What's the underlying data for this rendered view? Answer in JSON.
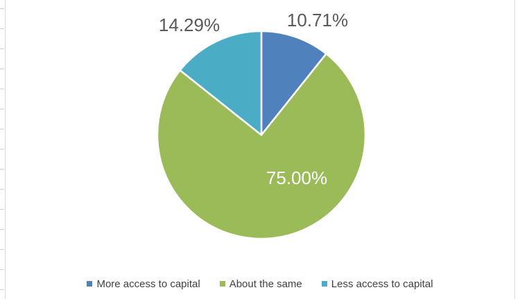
{
  "chart_data": {
    "type": "pie",
    "categories": [
      "More access to capital",
      "About the same",
      "Less access to capital"
    ],
    "values": [
      10.71,
      75.0,
      14.29
    ],
    "data_labels": [
      "10.71%",
      "75.00%",
      "14.29%"
    ],
    "colors": [
      "#4F81BD",
      "#9BBB59",
      "#4BACC6"
    ],
    "title": "",
    "legend_position": "bottom",
    "start_angle_deg": 0,
    "direction": "clockwise"
  },
  "legend": {
    "items": [
      {
        "label": "More access to capital",
        "color": "#4F81BD"
      },
      {
        "label": "About the same",
        "color": "#9BBB59"
      },
      {
        "label": "Less access to capital",
        "color": "#4BACC6"
      }
    ]
  }
}
